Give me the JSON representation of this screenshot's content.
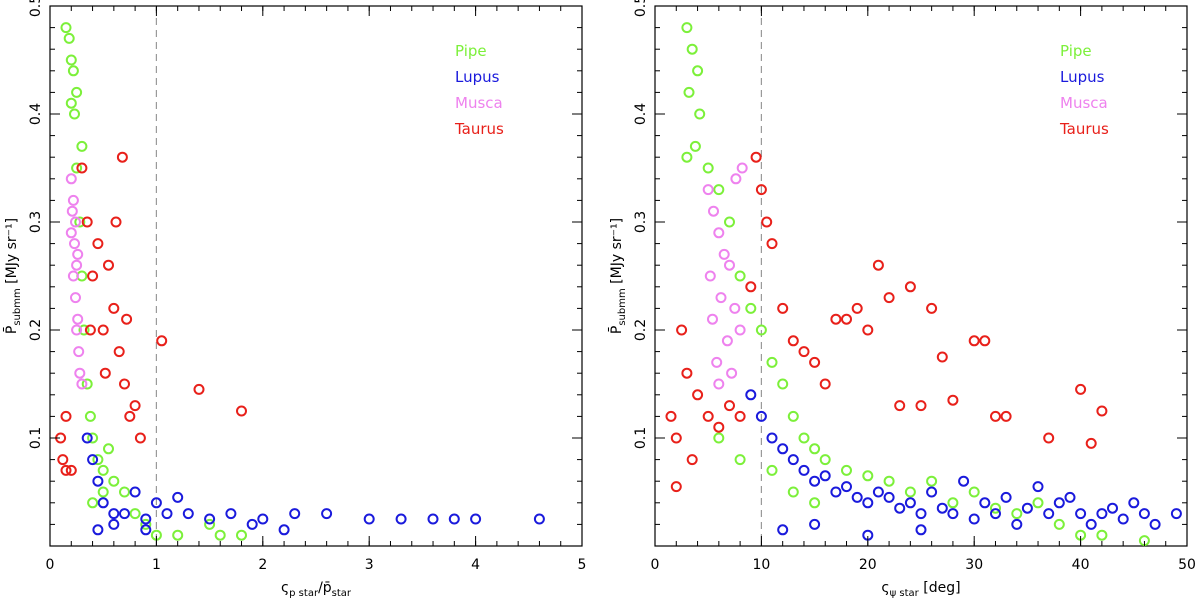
{
  "colors": {
    "Pipe": "#7cf03a",
    "Lupus": "#1a1adc",
    "Musca": "#ee82ee",
    "Taurus": "#e8201a",
    "ref_line": "#9a9a9a"
  },
  "chart_data": [
    {
      "type": "scatter",
      "panel": "left",
      "xlabel_main": "ς",
      "xlabel_sub": "p star",
      "xlabel_mid": "/p̄",
      "xlabel_sub2": "star",
      "ylabel_main": "P̄",
      "ylabel_sub": "submm",
      "ylabel_unit": "[MJy sr⁻¹]",
      "xlim": [
        0,
        5
      ],
      "ylim": [
        0,
        0.5
      ],
      "xticks": [
        0,
        1,
        2,
        3,
        4,
        5
      ],
      "xtick_labels": [
        "0",
        "1",
        "2",
        "3",
        "4",
        "5"
      ],
      "yticks": [
        0.1,
        0.2,
        0.3,
        0.4,
        0.5
      ],
      "ytick_labels": [
        "0.1",
        "0.2",
        "0.3",
        "0.4",
        "0.5"
      ],
      "ref_line_x": 1,
      "legend": [
        "Pipe",
        "Lupus",
        "Musca",
        "Taurus"
      ],
      "legend_position": "top-right",
      "series": [
        {
          "name": "Pipe",
          "points": [
            [
              0.15,
              0.48
            ],
            [
              0.18,
              0.47
            ],
            [
              0.2,
              0.45
            ],
            [
              0.22,
              0.44
            ],
            [
              0.25,
              0.42
            ],
            [
              0.2,
              0.41
            ],
            [
              0.23,
              0.4
            ],
            [
              0.3,
              0.37
            ],
            [
              0.25,
              0.35
            ],
            [
              0.28,
              0.3
            ],
            [
              0.3,
              0.25
            ],
            [
              0.32,
              0.2
            ],
            [
              0.35,
              0.15
            ],
            [
              0.38,
              0.12
            ],
            [
              0.4,
              0.1
            ],
            [
              0.45,
              0.08
            ],
            [
              0.5,
              0.07
            ],
            [
              0.6,
              0.06
            ],
            [
              0.7,
              0.05
            ],
            [
              0.5,
              0.05
            ],
            [
              0.8,
              0.03
            ],
            [
              0.9,
              0.02
            ],
            [
              1.0,
              0.01
            ],
            [
              1.2,
              0.01
            ],
            [
              1.5,
              0.02
            ],
            [
              1.6,
              0.01
            ],
            [
              1.8,
              0.01
            ],
            [
              0.4,
              0.04
            ],
            [
              0.55,
              0.09
            ]
          ]
        },
        {
          "name": "Lupus",
          "points": [
            [
              0.35,
              0.1
            ],
            [
              0.4,
              0.08
            ],
            [
              0.45,
              0.06
            ],
            [
              0.5,
              0.04
            ],
            [
              0.6,
              0.03
            ],
            [
              0.7,
              0.03
            ],
            [
              0.9,
              0.025
            ],
            [
              1.1,
              0.03
            ],
            [
              1.3,
              0.03
            ],
            [
              1.5,
              0.025
            ],
            [
              1.7,
              0.03
            ],
            [
              2.0,
              0.025
            ],
            [
              2.3,
              0.03
            ],
            [
              2.6,
              0.03
            ],
            [
              3.0,
              0.025
            ],
            [
              3.3,
              0.025
            ],
            [
              3.6,
              0.025
            ],
            [
              3.8,
              0.025
            ],
            [
              4.0,
              0.025
            ],
            [
              4.6,
              0.025
            ],
            [
              1.9,
              0.02
            ],
            [
              2.2,
              0.015
            ],
            [
              0.45,
              0.015
            ],
            [
              0.6,
              0.02
            ],
            [
              1.0,
              0.04
            ],
            [
              1.2,
              0.045
            ],
            [
              0.8,
              0.05
            ],
            [
              0.9,
              0.015
            ]
          ]
        },
        {
          "name": "Musca",
          "points": [
            [
              0.2,
              0.34
            ],
            [
              0.22,
              0.32
            ],
            [
              0.24,
              0.3
            ],
            [
              0.2,
              0.29
            ],
            [
              0.23,
              0.28
            ],
            [
              0.25,
              0.26
            ],
            [
              0.22,
              0.25
            ],
            [
              0.24,
              0.23
            ],
            [
              0.26,
              0.21
            ],
            [
              0.25,
              0.2
            ],
            [
              0.27,
              0.18
            ],
            [
              0.28,
              0.16
            ],
            [
              0.3,
              0.15
            ],
            [
              0.21,
              0.31
            ],
            [
              0.26,
              0.27
            ]
          ]
        },
        {
          "name": "Taurus",
          "points": [
            [
              0.1,
              0.1
            ],
            [
              0.12,
              0.08
            ],
            [
              0.15,
              0.12
            ],
            [
              0.2,
              0.07
            ],
            [
              0.35,
              0.3
            ],
            [
              0.4,
              0.25
            ],
            [
              0.5,
              0.2
            ],
            [
              0.55,
              0.26
            ],
            [
              0.6,
              0.22
            ],
            [
              0.65,
              0.18
            ],
            [
              0.68,
              0.36
            ],
            [
              0.7,
              0.15
            ],
            [
              0.75,
              0.12
            ],
            [
              0.8,
              0.13
            ],
            [
              0.85,
              0.1
            ],
            [
              1.05,
              0.19
            ],
            [
              1.4,
              0.145
            ],
            [
              1.8,
              0.125
            ],
            [
              0.45,
              0.28
            ],
            [
              0.62,
              0.3
            ],
            [
              0.3,
              0.35
            ],
            [
              0.38,
              0.2
            ],
            [
              0.52,
              0.16
            ],
            [
              0.72,
              0.21
            ],
            [
              0.15,
              0.07
            ]
          ]
        }
      ]
    },
    {
      "type": "scatter",
      "panel": "right",
      "xlabel_main": "ς",
      "xlabel_sub": "ψ star",
      "xlabel_unit": "[deg]",
      "ylabel_main": "P̄",
      "ylabel_sub": "submm",
      "ylabel_unit": "[MJy sr⁻¹]",
      "xlim": [
        0,
        50
      ],
      "ylim": [
        0,
        0.5
      ],
      "xticks": [
        0,
        10,
        20,
        30,
        40,
        50
      ],
      "xtick_labels": [
        "0",
        "10",
        "20",
        "30",
        "40",
        "50"
      ],
      "yticks": [
        0.1,
        0.2,
        0.3,
        0.4,
        0.5
      ],
      "ytick_labels": [
        "0.1",
        "0.2",
        "0.3",
        "0.4",
        "0.5"
      ],
      "ref_line_x": 10,
      "legend": [
        "Pipe",
        "Lupus",
        "Musca",
        "Taurus"
      ],
      "legend_position": "top-right",
      "series": [
        {
          "name": "Pipe",
          "points": [
            [
              3,
              0.48
            ],
            [
              3.5,
              0.46
            ],
            [
              4,
              0.44
            ],
            [
              3.2,
              0.42
            ],
            [
              4.2,
              0.4
            ],
            [
              3.8,
              0.37
            ],
            [
              3,
              0.36
            ],
            [
              5,
              0.35
            ],
            [
              6,
              0.33
            ],
            [
              7,
              0.3
            ],
            [
              8,
              0.25
            ],
            [
              9,
              0.22
            ],
            [
              10,
              0.2
            ],
            [
              11,
              0.17
            ],
            [
              12,
              0.15
            ],
            [
              13,
              0.12
            ],
            [
              14,
              0.1
            ],
            [
              15,
              0.09
            ],
            [
              16,
              0.08
            ],
            [
              18,
              0.07
            ],
            [
              20,
              0.065
            ],
            [
              22,
              0.06
            ],
            [
              24,
              0.05
            ],
            [
              26,
              0.06
            ],
            [
              28,
              0.04
            ],
            [
              30,
              0.05
            ],
            [
              32,
              0.035
            ],
            [
              34,
              0.03
            ],
            [
              36,
              0.04
            ],
            [
              38,
              0.02
            ],
            [
              40,
              0.01
            ],
            [
              42,
              0.01
            ],
            [
              46,
              0.005
            ],
            [
              6,
              0.1
            ],
            [
              8,
              0.08
            ],
            [
              11,
              0.07
            ],
            [
              13,
              0.05
            ],
            [
              15,
              0.04
            ]
          ]
        },
        {
          "name": "Lupus",
          "points": [
            [
              9,
              0.14
            ],
            [
              10,
              0.12
            ],
            [
              11,
              0.1
            ],
            [
              12,
              0.09
            ],
            [
              13,
              0.08
            ],
            [
              14,
              0.07
            ],
            [
              15,
              0.06
            ],
            [
              16,
              0.065
            ],
            [
              17,
              0.05
            ],
            [
              18,
              0.055
            ],
            [
              19,
              0.045
            ],
            [
              20,
              0.04
            ],
            [
              21,
              0.05
            ],
            [
              22,
              0.045
            ],
            [
              23,
              0.035
            ],
            [
              24,
              0.04
            ],
            [
              25,
              0.03
            ],
            [
              26,
              0.05
            ],
            [
              27,
              0.035
            ],
            [
              28,
              0.03
            ],
            [
              29,
              0.06
            ],
            [
              30,
              0.025
            ],
            [
              31,
              0.04
            ],
            [
              32,
              0.03
            ],
            [
              33,
              0.045
            ],
            [
              34,
              0.02
            ],
            [
              35,
              0.035
            ],
            [
              36,
              0.055
            ],
            [
              37,
              0.03
            ],
            [
              38,
              0.04
            ],
            [
              39,
              0.045
            ],
            [
              40,
              0.03
            ],
            [
              41,
              0.02
            ],
            [
              42,
              0.03
            ],
            [
              43,
              0.035
            ],
            [
              44,
              0.025
            ],
            [
              45,
              0.04
            ],
            [
              46,
              0.03
            ],
            [
              47,
              0.02
            ],
            [
              49,
              0.03
            ],
            [
              12,
              0.015
            ],
            [
              15,
              0.02
            ],
            [
              20,
              0.01
            ],
            [
              25,
              0.015
            ]
          ]
        },
        {
          "name": "Musca",
          "points": [
            [
              5,
              0.33
            ],
            [
              5.5,
              0.31
            ],
            [
              6,
              0.29
            ],
            [
              6.5,
              0.27
            ],
            [
              7,
              0.26
            ],
            [
              5.2,
              0.25
            ],
            [
              6.2,
              0.23
            ],
            [
              7.5,
              0.22
            ],
            [
              8,
              0.2
            ],
            [
              6.8,
              0.19
            ],
            [
              5.8,
              0.17
            ],
            [
              7.2,
              0.16
            ],
            [
              6,
              0.15
            ],
            [
              8.2,
              0.35
            ],
            [
              7.6,
              0.34
            ],
            [
              5.4,
              0.21
            ]
          ]
        },
        {
          "name": "Taurus",
          "points": [
            [
              1.5,
              0.12
            ],
            [
              2,
              0.1
            ],
            [
              2.5,
              0.2
            ],
            [
              3,
              0.16
            ],
            [
              3.5,
              0.08
            ],
            [
              4,
              0.14
            ],
            [
              5,
              0.12
            ],
            [
              6,
              0.11
            ],
            [
              7,
              0.13
            ],
            [
              8,
              0.12
            ],
            [
              9,
              0.24
            ],
            [
              9.5,
              0.36
            ],
            [
              10,
              0.33
            ],
            [
              10.5,
              0.3
            ],
            [
              11,
              0.28
            ],
            [
              12,
              0.22
            ],
            [
              13,
              0.19
            ],
            [
              14,
              0.18
            ],
            [
              15,
              0.17
            ],
            [
              16,
              0.15
            ],
            [
              17,
              0.21
            ],
            [
              18,
              0.21
            ],
            [
              19,
              0.22
            ],
            [
              20,
              0.2
            ],
            [
              21,
              0.26
            ],
            [
              22,
              0.23
            ],
            [
              24,
              0.24
            ],
            [
              26,
              0.22
            ],
            [
              27,
              0.175
            ],
            [
              28,
              0.135
            ],
            [
              30,
              0.19
            ],
            [
              31,
              0.19
            ],
            [
              32,
              0.12
            ],
            [
              33,
              0.12
            ],
            [
              37,
              0.1
            ],
            [
              40,
              0.145
            ],
            [
              41,
              0.095
            ],
            [
              42,
              0.125
            ],
            [
              2,
              0.055
            ],
            [
              23,
              0.13
            ],
            [
              25,
              0.13
            ]
          ]
        }
      ]
    }
  ]
}
